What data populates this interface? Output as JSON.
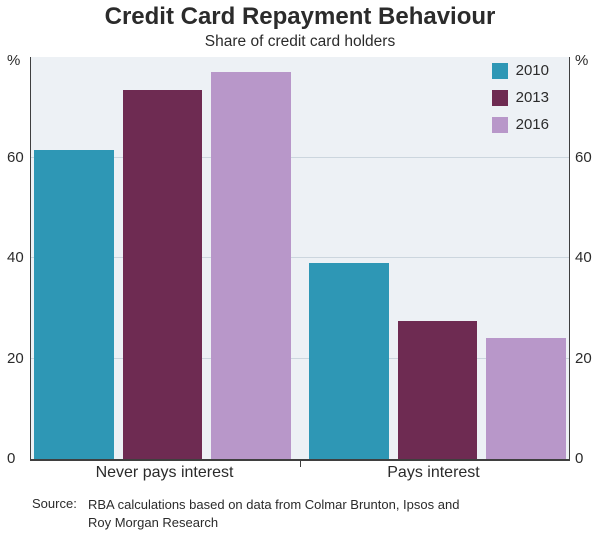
{
  "title": "Credit Card Repayment Behaviour",
  "subtitle": "Share of credit card holders",
  "chart_data": {
    "type": "bar",
    "title": "Credit Card Repayment Behaviour",
    "subtitle": "Share of credit card holders",
    "categories": [
      "Never pays interest",
      "Pays interest"
    ],
    "series": [
      {
        "name": "2010",
        "color": "#2e97b5",
        "values": [
          61.5,
          39
        ]
      },
      {
        "name": "2013",
        "color": "#6e2b52",
        "values": [
          73.5,
          27.5
        ]
      },
      {
        "name": "2016",
        "color": "#b897c9",
        "values": [
          77,
          24
        ]
      }
    ],
    "unit": "%",
    "ylim": [
      0,
      80
    ],
    "yticks": [
      0,
      20,
      40,
      60
    ],
    "grid": true,
    "legend_position": "top-right",
    "plot_background": "#edf1f5"
  },
  "source": {
    "label": "Source:",
    "text": "RBA calculations based on data from Colmar Brunton, Ipsos and Roy Morgan Research"
  }
}
